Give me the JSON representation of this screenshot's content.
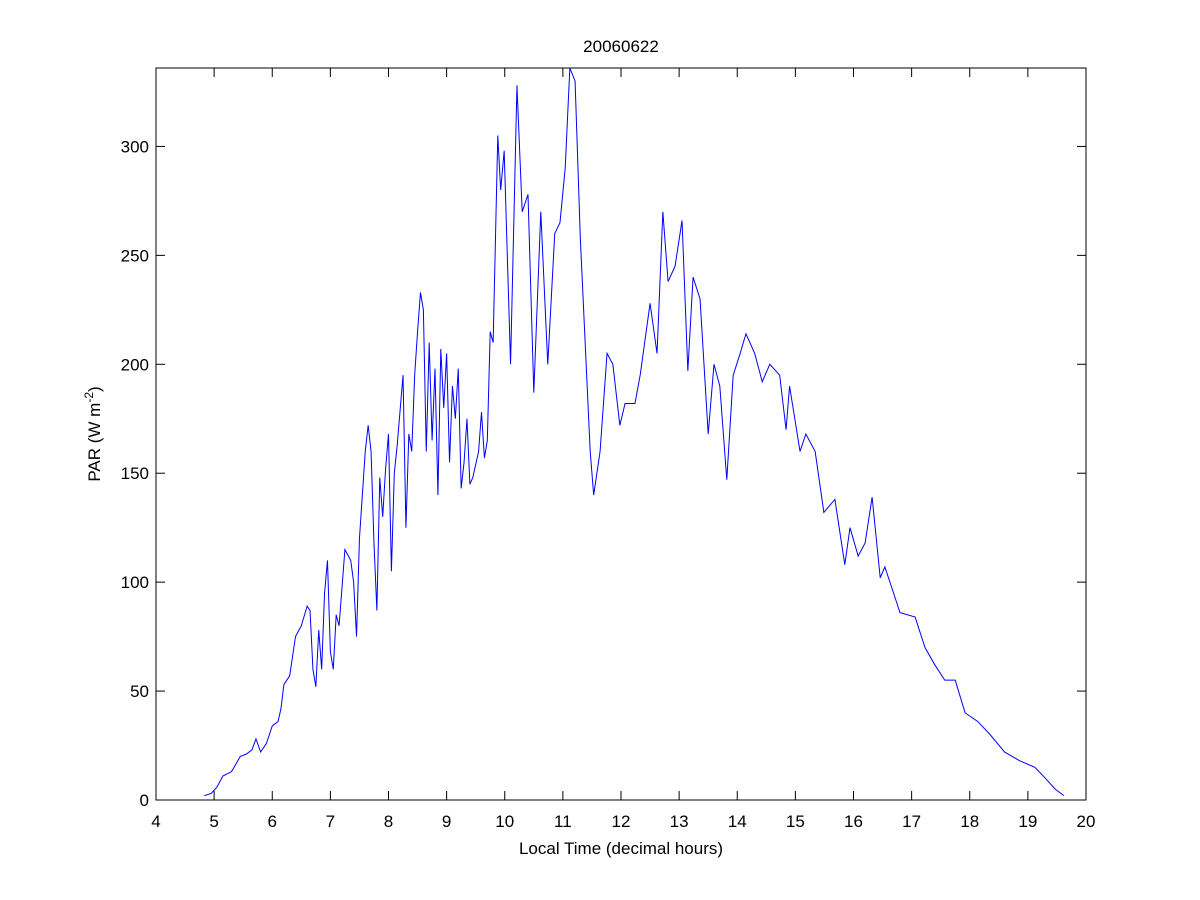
{
  "chart_data": {
    "type": "line",
    "title": "20060622",
    "xlabel": "Local Time (decimal hours)",
    "ylabel": [
      "PAR (W m",
      "-2",
      ")"
    ],
    "xlim": [
      4,
      20
    ],
    "xticks": [
      4,
      5,
      6,
      7,
      8,
      9,
      10,
      11,
      12,
      13,
      14,
      15,
      16,
      17,
      18,
      19,
      20
    ],
    "ylim": [
      0,
      336
    ],
    "yticks": [
      0,
      50,
      100,
      150,
      200,
      250,
      300
    ],
    "series": [
      {
        "color": "#0000ff",
        "x": [
          4.83,
          4.95,
          5.05,
          5.15,
          5.3,
          5.45,
          5.55,
          5.65,
          5.72,
          5.8,
          5.9,
          6.0,
          6.1,
          6.15,
          6.2,
          6.3,
          6.4,
          6.5,
          6.6,
          6.65,
          6.7,
          6.75,
          6.8,
          6.85,
          6.9,
          6.95,
          7.0,
          7.05,
          7.1,
          7.15,
          7.25,
          7.35,
          7.4,
          7.45,
          7.5,
          7.6,
          7.65,
          7.7,
          7.75,
          7.8,
          7.85,
          7.9,
          7.95,
          8.0,
          8.05,
          8.1,
          8.15,
          8.25,
          8.3,
          8.35,
          8.4,
          8.45,
          8.5,
          8.55,
          8.6,
          8.65,
          8.7,
          8.75,
          8.8,
          8.85,
          8.9,
          8.95,
          9.0,
          9.05,
          9.1,
          9.15,
          9.2,
          9.25,
          9.3,
          9.35,
          9.4,
          9.45,
          9.55,
          9.6,
          9.65,
          9.7,
          9.75,
          9.8,
          9.88,
          9.93,
          9.99,
          10.1,
          10.21,
          10.3,
          10.4,
          10.5,
          10.62,
          10.74,
          10.86,
          10.95,
          11.04,
          11.12,
          11.21,
          11.3,
          11.47,
          11.53,
          11.64,
          11.76,
          11.86,
          11.98,
          12.07,
          12.24,
          12.33,
          12.5,
          12.62,
          12.72,
          12.81,
          12.93,
          13.05,
          13.15,
          13.24,
          13.36,
          13.5,
          13.6,
          13.7,
          13.82,
          13.93,
          14.05,
          14.15,
          14.3,
          14.43,
          14.56,
          14.73,
          14.84,
          14.9,
          15.08,
          15.18,
          15.34,
          15.49,
          15.68,
          15.85,
          15.94,
          16.08,
          16.2,
          16.32,
          16.46,
          16.54,
          16.8,
          17.06,
          17.23,
          17.4,
          17.57,
          17.75,
          17.92,
          18.14,
          18.35,
          18.6,
          18.86,
          19.12,
          19.3,
          19.47,
          19.62
        ],
        "values": [
          2,
          3,
          6,
          11,
          13,
          20,
          21,
          23,
          28,
          22,
          26,
          34,
          36,
          42,
          53,
          57,
          75,
          80,
          89,
          87,
          60,
          52,
          78,
          60,
          95,
          110,
          68,
          60,
          85,
          80,
          115,
          110,
          100,
          75,
          120,
          160,
          172,
          160,
          118,
          87,
          148,
          130,
          152,
          168,
          105,
          150,
          163,
          195,
          125,
          168,
          160,
          195,
          215,
          233,
          225,
          160,
          210,
          165,
          198,
          140,
          207,
          180,
          205,
          155,
          190,
          175,
          198,
          143,
          155,
          175,
          145,
          148,
          160,
          178,
          157,
          165,
          215,
          210,
          305,
          280,
          298,
          200,
          328,
          270,
          278,
          187,
          270,
          200,
          260,
          265,
          290,
          336,
          330,
          258,
          160,
          140,
          160,
          205,
          200,
          172,
          182,
          182,
          195,
          228,
          205,
          270,
          238,
          245,
          266,
          197,
          240,
          230,
          168,
          200,
          190,
          147,
          195,
          205,
          214,
          205,
          192,
          200,
          195,
          170,
          190,
          160,
          168,
          160,
          132,
          138,
          108,
          125,
          112,
          118,
          139,
          102,
          107,
          86,
          84,
          70,
          62,
          55,
          55,
          40,
          36,
          30,
          22,
          18,
          15,
          10,
          5,
          2
        ]
      }
    ]
  }
}
